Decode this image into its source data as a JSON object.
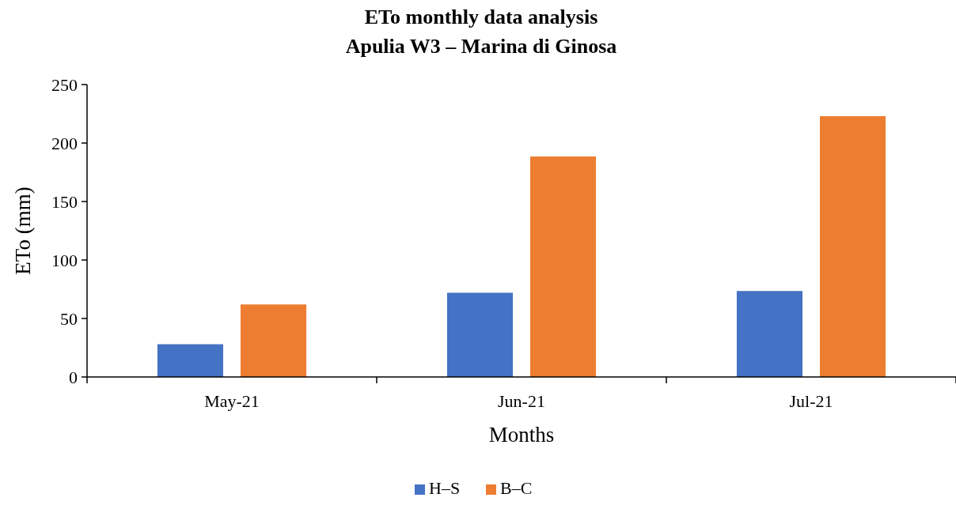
{
  "chart_data": {
    "type": "bar",
    "title": "ETo monthly data analysis",
    "subtitle": "Apulia W3 – Marina di Ginosa",
    "xlabel": "Months",
    "ylabel": "ETo (mm)",
    "categories": [
      "May-21",
      "Jun-21",
      "Jul-21"
    ],
    "series": [
      {
        "name": "H–S",
        "color": "#4472c4",
        "values": [
          28,
          72,
          73.5
        ]
      },
      {
        "name": "B–C",
        "color": "#ed7d31",
        "values": [
          62,
          188.5,
          223
        ]
      }
    ],
    "ylim": [
      0,
      250
    ],
    "yticks": [
      0,
      50,
      100,
      150,
      200,
      250
    ],
    "grid": false,
    "legend": "bottom"
  }
}
